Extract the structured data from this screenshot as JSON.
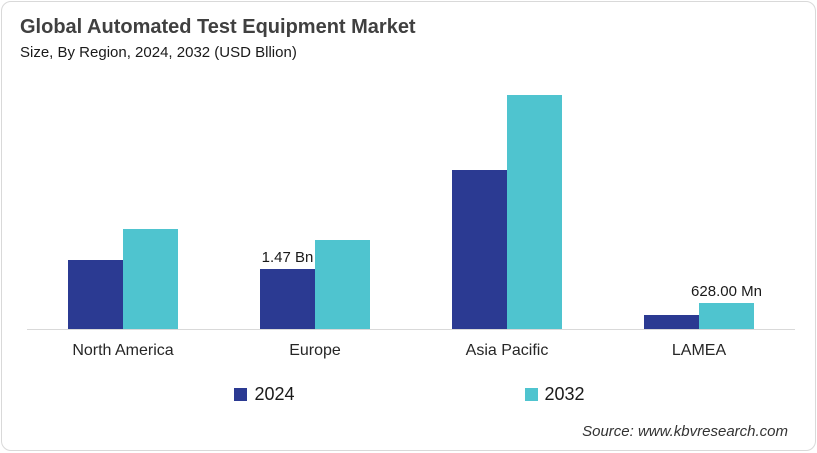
{
  "card": {
    "background": "#ffffff",
    "border_color": "#d9d9d9"
  },
  "chart_data": {
    "type": "bar",
    "title": "Global Automated Test Equipment Market",
    "subtitle": "Size, By Region, 2024, 2032 (USD Bllion)",
    "unit": "USD Billion",
    "categories": [
      "North America",
      "Europe",
      "Asia Pacific",
      "LAMEA"
    ],
    "series": [
      {
        "name": "2024",
        "color": "#2B3A92",
        "values": [
          1.7,
          1.47,
          3.9,
          0.34
        ],
        "data_labels": [
          "",
          "1.47 Bn",
          "",
          ""
        ]
      },
      {
        "name": "2032",
        "color": "#4FC4CF",
        "values": [
          2.45,
          2.19,
          5.75,
          0.628
        ],
        "data_labels": [
          "",
          "",
          "",
          "628.00 Mn"
        ]
      }
    ],
    "ylim": [
      0,
      6
    ],
    "y_axis_visible": false,
    "gridlines": false,
    "axis_line_color": "#d9d9d9",
    "legend_position": "bottom"
  },
  "source": {
    "text": "Source: www.kbvresearch.com"
  }
}
